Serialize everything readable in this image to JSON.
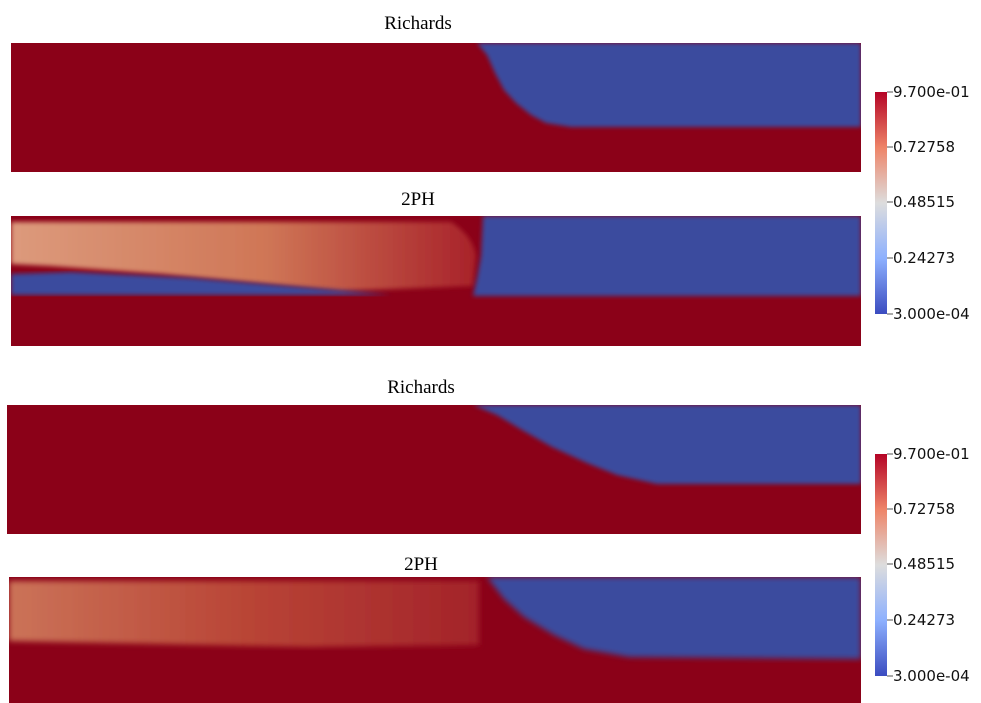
{
  "figure": {
    "panels": [
      {
        "title": "Richards"
      },
      {
        "title": "2PH"
      },
      {
        "title": "Richards"
      },
      {
        "title": "2PH"
      }
    ],
    "colorbars": [
      {
        "labels": [
          "9.700e-01",
          "0.72758",
          "0.48515",
          "0.24273",
          "3.000e-04"
        ],
        "colors": {
          "high": "#b40426",
          "mid": "#dddddd",
          "low": "#3b4cc0"
        }
      },
      {
        "labels": [
          "9.700e-01",
          "0.72758",
          "0.48515",
          "0.24273",
          "3.000e-04"
        ],
        "colors": {
          "high": "#b40426",
          "mid": "#dddddd",
          "low": "#3b4cc0"
        }
      }
    ],
    "field_colors": {
      "saturated": "#8b0118",
      "dry": "#3a4b9e",
      "partial": "#c8664e"
    }
  }
}
